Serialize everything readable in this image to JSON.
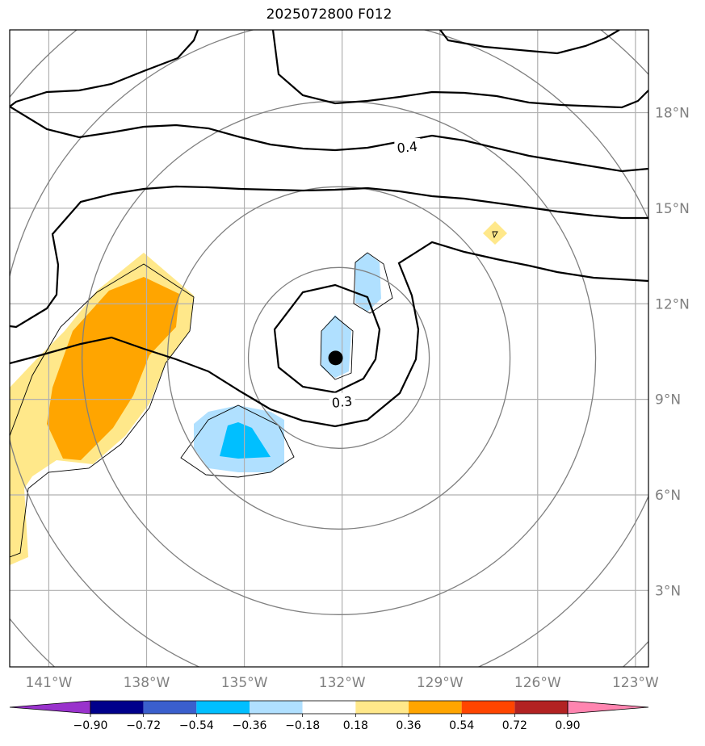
{
  "title": "2025072800 F012",
  "map": {
    "lon_range": [
      -142.2,
      -122.6
    ],
    "lat_range": [
      0.6,
      20.6
    ],
    "lon_ticks": [
      {
        "value": -141,
        "label": "141°W"
      },
      {
        "value": -138,
        "label": "138°W"
      },
      {
        "value": -135,
        "label": "135°W"
      },
      {
        "value": -132,
        "label": "132°W"
      },
      {
        "value": -129,
        "label": "129°W"
      },
      {
        "value": -126,
        "label": "126°W"
      },
      {
        "value": -123,
        "label": "123°W"
      }
    ],
    "lat_ticks": [
      {
        "value": 3,
        "label": "3°N"
      },
      {
        "value": 6,
        "label": "6°N"
      },
      {
        "value": 9,
        "label": "9°N"
      },
      {
        "value": 12,
        "label": "12°N"
      },
      {
        "value": 15,
        "label": "15°N"
      },
      {
        "value": 18,
        "label": "18°N"
      }
    ],
    "grid": true,
    "center_marker": {
      "lon": -132.2,
      "lat": 10.3
    },
    "range_ring_color": "#808080",
    "contour_color": "#000000",
    "contour_labels": [
      {
        "text": "0.4",
        "lon": -130.0,
        "lat": 16.9
      },
      {
        "text": "0.3",
        "lon": -132.0,
        "lat": 8.9
      }
    ]
  },
  "colorbar": {
    "colors": [
      "#9932cc",
      "#00008b",
      "#3a5fcd",
      "#00bfff",
      "#b0e0ff",
      "#ffffff",
      "#ffe88a",
      "#ffa500",
      "#ff4500",
      "#b22222",
      "#ff85b0"
    ],
    "tick_labels": [
      "−0.90",
      "−0.72",
      "−0.54",
      "−0.36",
      "−0.18",
      "0.18",
      "0.36",
      "0.54",
      "0.72",
      "0.90"
    ],
    "extend": "both"
  }
}
